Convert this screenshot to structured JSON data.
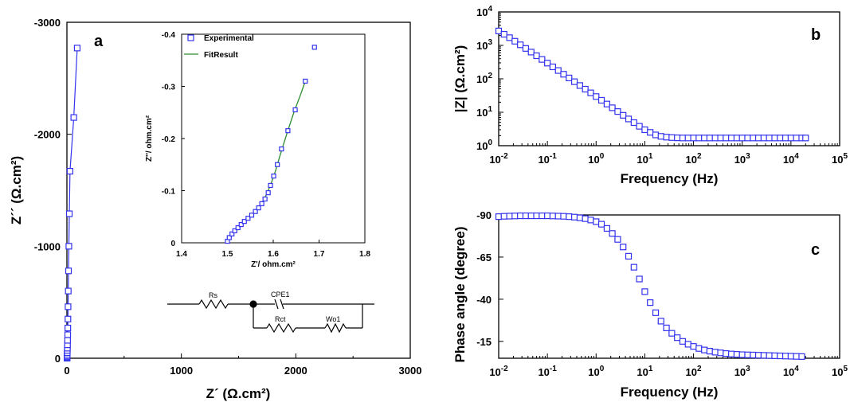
{
  "colors": {
    "marker": "#3333ee",
    "fit_line": "#2e8b2e",
    "axis": "#000000"
  },
  "chart_data": [
    {
      "id": "a",
      "type": "scatter",
      "panel_label": "a",
      "xlabel": "Z´ (Ω.cm²)",
      "ylabel": "Z´´ (Ω.cm²)",
      "xlim": [
        0,
        3000
      ],
      "ylim": [
        0,
        -3000
      ],
      "x_ticks": [
        "0",
        "1000",
        "2000",
        "3000"
      ],
      "y_ticks": [
        "0",
        "-1000",
        "-2000",
        "-3000"
      ],
      "series": [
        {
          "points": [
            [
              1.5,
              0
            ],
            [
              1.6,
              -5
            ],
            [
              1.8,
              -12
            ],
            [
              2,
              -20
            ],
            [
              2.5,
              -35
            ],
            [
              3,
              -50
            ],
            [
              3.5,
              -70
            ],
            [
              4,
              -90
            ],
            [
              5,
              -120
            ],
            [
              6,
              -160
            ],
            [
              7,
              -210
            ],
            [
              8,
              -270
            ],
            [
              9,
              -350
            ],
            [
              10,
              -460
            ],
            [
              12,
              -600
            ],
            [
              14,
              -780
            ],
            [
              17,
              -1000
            ],
            [
              21,
              -1290
            ],
            [
              27,
              -1670
            ],
            [
              60,
              -2150
            ],
            [
              90,
              -2770
            ]
          ]
        }
      ]
    },
    {
      "id": "a_inset",
      "type": "scatter",
      "xlabel": "Z'/ ohm.cm²",
      "ylabel": "Z''/ ohm.cm²",
      "xlim": [
        1.4,
        1.8
      ],
      "ylim": [
        0,
        -0.4
      ],
      "x_ticks": [
        "1.4",
        "1.5",
        "1.6",
        "1.7",
        "1.8"
      ],
      "y_ticks": [
        "0",
        "-0.1",
        "-0.2",
        "-0.3",
        "-0.4"
      ],
      "legend_position": "top-left",
      "series": [
        {
          "name": "Experimental",
          "points": [
            [
              1.5,
              -0.003
            ],
            [
              1.504,
              -0.01
            ],
            [
              1.51,
              -0.017
            ],
            [
              1.516,
              -0.023
            ],
            [
              1.523,
              -0.029
            ],
            [
              1.53,
              -0.035
            ],
            [
              1.537,
              -0.041
            ],
            [
              1.545,
              -0.047
            ],
            [
              1.553,
              -0.053
            ],
            [
              1.561,
              -0.06
            ],
            [
              1.568,
              -0.067
            ],
            [
              1.575,
              -0.075
            ],
            [
              1.582,
              -0.084
            ],
            [
              1.589,
              -0.096
            ],
            [
              1.594,
              -0.11
            ],
            [
              1.601,
              -0.128
            ],
            [
              1.609,
              -0.15
            ],
            [
              1.618,
              -0.18
            ],
            [
              1.632,
              -0.215
            ],
            [
              1.648,
              -0.255
            ],
            [
              1.67,
              -0.31
            ],
            [
              1.69,
              -0.375
            ]
          ]
        },
        {
          "name": "FitResult",
          "points": [
            [
              1.5,
              0
            ],
            [
              1.515,
              -0.022
            ],
            [
              1.53,
              -0.035
            ],
            [
              1.545,
              -0.047
            ],
            [
              1.56,
              -0.059
            ],
            [
              1.575,
              -0.076
            ],
            [
              1.585,
              -0.092
            ],
            [
              1.595,
              -0.113
            ],
            [
              1.605,
              -0.138
            ],
            [
              1.615,
              -0.168
            ],
            [
              1.63,
              -0.21
            ],
            [
              1.645,
              -0.25
            ],
            [
              1.66,
              -0.285
            ],
            [
              1.67,
              -0.31
            ]
          ]
        }
      ]
    },
    {
      "id": "b",
      "type": "scatter",
      "panel_label": "b",
      "xlabel": "Frequency (Hz)",
      "ylabel": "|Z| (Ω.cm²)",
      "xscale": "log",
      "yscale": "log",
      "xlim": [
        0.01,
        100000
      ],
      "ylim": [
        1,
        10000
      ],
      "x_ticks": [
        "10-2",
        "10-1",
        "100",
        "101",
        "102",
        "103",
        "104",
        "105"
      ],
      "y_ticks": [
        "100",
        "101",
        "102",
        "103",
        "104"
      ],
      "series": [
        {
          "points": [
            [
              0.01,
              2700
            ],
            [
              0.0129,
              2150
            ],
            [
              0.0167,
              1700
            ],
            [
              0.0215,
              1330
            ],
            [
              0.0278,
              1040
            ],
            [
              0.0359,
              810
            ],
            [
              0.0464,
              630
            ],
            [
              0.0599,
              490
            ],
            [
              0.0774,
              380
            ],
            [
              0.1,
              295
            ],
            [
              0.129,
              228
            ],
            [
              0.167,
              177
            ],
            [
              0.215,
              137
            ],
            [
              0.278,
              106
            ],
            [
              0.359,
              82
            ],
            [
              0.464,
              63
            ],
            [
              0.599,
              49
            ],
            [
              0.774,
              38
            ],
            [
              1,
              29.5
            ],
            [
              1.29,
              22.8
            ],
            [
              1.67,
              17.6
            ],
            [
              2.15,
              13.6
            ],
            [
              2.78,
              10.5
            ],
            [
              3.59,
              8.1
            ],
            [
              4.64,
              6.3
            ],
            [
              5.99,
              4.9
            ],
            [
              7.74,
              3.8
            ],
            [
              10,
              3.0
            ],
            [
              12.9,
              2.5
            ],
            [
              16.7,
              2.1
            ],
            [
              21.5,
              1.9
            ],
            [
              27.8,
              1.8
            ],
            [
              35.9,
              1.75
            ],
            [
              46.4,
              1.72
            ],
            [
              59.9,
              1.7
            ],
            [
              77.4,
              1.7
            ],
            [
              100,
              1.7
            ],
            [
              129,
              1.7
            ],
            [
              167,
              1.7
            ],
            [
              215,
              1.7
            ],
            [
              278,
              1.7
            ],
            [
              359,
              1.7
            ],
            [
              464,
              1.7
            ],
            [
              599,
              1.7
            ],
            [
              774,
              1.7
            ],
            [
              1000,
              1.7
            ],
            [
              1290,
              1.7
            ],
            [
              1670,
              1.7
            ],
            [
              2150,
              1.7
            ],
            [
              2780,
              1.7
            ],
            [
              3590,
              1.7
            ],
            [
              4640,
              1.7
            ],
            [
              5990,
              1.7
            ],
            [
              7740,
              1.7
            ],
            [
              10000,
              1.7
            ],
            [
              12900,
              1.7
            ],
            [
              16700,
              1.7
            ],
            [
              20000,
              1.7
            ]
          ]
        }
      ]
    },
    {
      "id": "c",
      "type": "scatter",
      "panel_label": "c",
      "xlabel": "Frequency (Hz)",
      "ylabel": "Phase angle (degree)",
      "xscale": "log",
      "xlim": [
        0.01,
        100000
      ],
      "ylim": [
        -5,
        -90
      ],
      "x_ticks": [
        "10-2",
        "10-1",
        "100",
        "101",
        "102",
        "103",
        "104",
        "105"
      ],
      "y_ticks": [
        "-15",
        "-40",
        "-65",
        "-90"
      ],
      "series": [
        {
          "points": [
            [
              0.01,
              -89
            ],
            [
              0.0129,
              -89.2
            ],
            [
              0.0167,
              -89.3
            ],
            [
              0.0215,
              -89.4
            ],
            [
              0.0278,
              -89.5
            ],
            [
              0.0359,
              -89.5
            ],
            [
              0.0464,
              -89.5
            ],
            [
              0.0599,
              -89.5
            ],
            [
              0.0774,
              -89.5
            ],
            [
              0.1,
              -89.5
            ],
            [
              0.129,
              -89.4
            ],
            [
              0.167,
              -89.3
            ],
            [
              0.215,
              -89.2
            ],
            [
              0.278,
              -89
            ],
            [
              0.359,
              -88.7
            ],
            [
              0.464,
              -88.3
            ],
            [
              0.599,
              -87.8
            ],
            [
              0.774,
              -87
            ],
            [
              1,
              -86
            ],
            [
              1.29,
              -84.5
            ],
            [
              1.67,
              -82
            ],
            [
              2.15,
              -79
            ],
            [
              2.78,
              -75.5
            ],
            [
              3.59,
              -71
            ],
            [
              4.64,
              -65.5
            ],
            [
              5.99,
              -59
            ],
            [
              7.74,
              -52
            ],
            [
              10,
              -44.5
            ],
            [
              12.9,
              -38
            ],
            [
              16.7,
              -32
            ],
            [
              21.5,
              -27
            ],
            [
              27.8,
              -23
            ],
            [
              35.9,
              -19.8
            ],
            [
              46.4,
              -17.2
            ],
            [
              59.9,
              -15
            ],
            [
              77.4,
              -13.3
            ],
            [
              100,
              -12
            ],
            [
              129,
              -10.8
            ],
            [
              167,
              -9.9
            ],
            [
              215,
              -9.2
            ],
            [
              278,
              -8.6
            ],
            [
              359,
              -8.2
            ],
            [
              464,
              -7.8
            ],
            [
              599,
              -7.5
            ],
            [
              774,
              -7.3
            ],
            [
              1000,
              -7.1
            ],
            [
              1290,
              -7.0
            ],
            [
              1670,
              -6.9
            ],
            [
              2150,
              -6.8
            ],
            [
              2780,
              -6.7
            ],
            [
              3590,
              -6.6
            ],
            [
              4640,
              -6.5
            ],
            [
              5990,
              -6.4
            ],
            [
              7740,
              -6.3
            ],
            [
              10000,
              -6.2
            ],
            [
              12900,
              -6.1
            ],
            [
              16700,
              -6.0
            ]
          ]
        }
      ]
    }
  ],
  "circuit": {
    "labels": [
      "Rs",
      "CPE1",
      "Rct",
      "Wo1"
    ]
  }
}
